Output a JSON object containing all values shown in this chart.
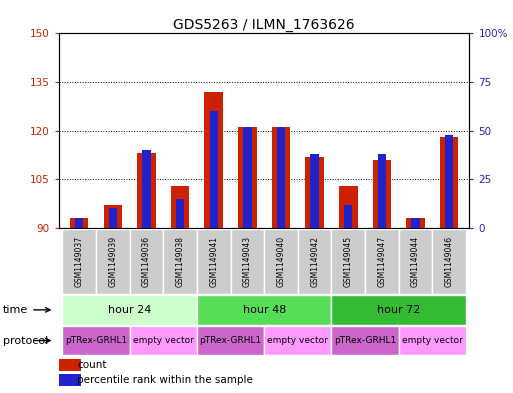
{
  "title": "GDS5263 / ILMN_1763626",
  "samples": [
    "GSM1149037",
    "GSM1149039",
    "GSM1149036",
    "GSM1149038",
    "GSM1149041",
    "GSM1149043",
    "GSM1149040",
    "GSM1149042",
    "GSM1149045",
    "GSM1149047",
    "GSM1149044",
    "GSM1149046"
  ],
  "count_values": [
    93,
    97,
    113,
    103,
    132,
    121,
    121,
    112,
    103,
    111,
    93,
    118
  ],
  "percentile_values": [
    5,
    10,
    40,
    15,
    60,
    52,
    52,
    38,
    12,
    38,
    5,
    48
  ],
  "ylim_left": [
    90,
    150
  ],
  "ylim_right": [
    0,
    100
  ],
  "yticks_left": [
    90,
    105,
    120,
    135,
    150
  ],
  "yticks_right": [
    0,
    25,
    50,
    75,
    100
  ],
  "ytick_labels_left": [
    "90",
    "105",
    "120",
    "135",
    "150"
  ],
  "ytick_labels_right": [
    "0",
    "25",
    "50",
    "75",
    "100%"
  ],
  "bar_color_red": "#cc2200",
  "bar_color_blue": "#2222cc",
  "time_groups": [
    {
      "label": "hour 24",
      "start": 0,
      "end": 4,
      "color": "#ccffcc"
    },
    {
      "label": "hour 48",
      "start": 4,
      "end": 8,
      "color": "#55dd55"
    },
    {
      "label": "hour 72",
      "start": 8,
      "end": 12,
      "color": "#33bb33"
    }
  ],
  "protocol_groups": [
    {
      "label": "pTRex-GRHL1",
      "start": 0,
      "end": 2,
      "color": "#cc66cc"
    },
    {
      "label": "empty vector",
      "start": 2,
      "end": 4,
      "color": "#ff99ff"
    },
    {
      "label": "pTRex-GRHL1",
      "start": 4,
      "end": 6,
      "color": "#cc66cc"
    },
    {
      "label": "empty vector",
      "start": 6,
      "end": 8,
      "color": "#ff99ff"
    },
    {
      "label": "pTRex-GRHL1",
      "start": 8,
      "end": 10,
      "color": "#cc66cc"
    },
    {
      "label": "empty vector",
      "start": 10,
      "end": 12,
      "color": "#ff99ff"
    }
  ],
  "red_bar_width": 0.55,
  "blue_bar_width": 0.25,
  "sample_bg_color": "#cccccc",
  "legend_red_label": "count",
  "legend_blue_label": "percentile rank within the sample",
  "title_fontsize": 10,
  "tick_fontsize": 7.5,
  "sample_fontsize": 5.5,
  "row_fontsize": 8,
  "prot_fontsize": 6.5
}
